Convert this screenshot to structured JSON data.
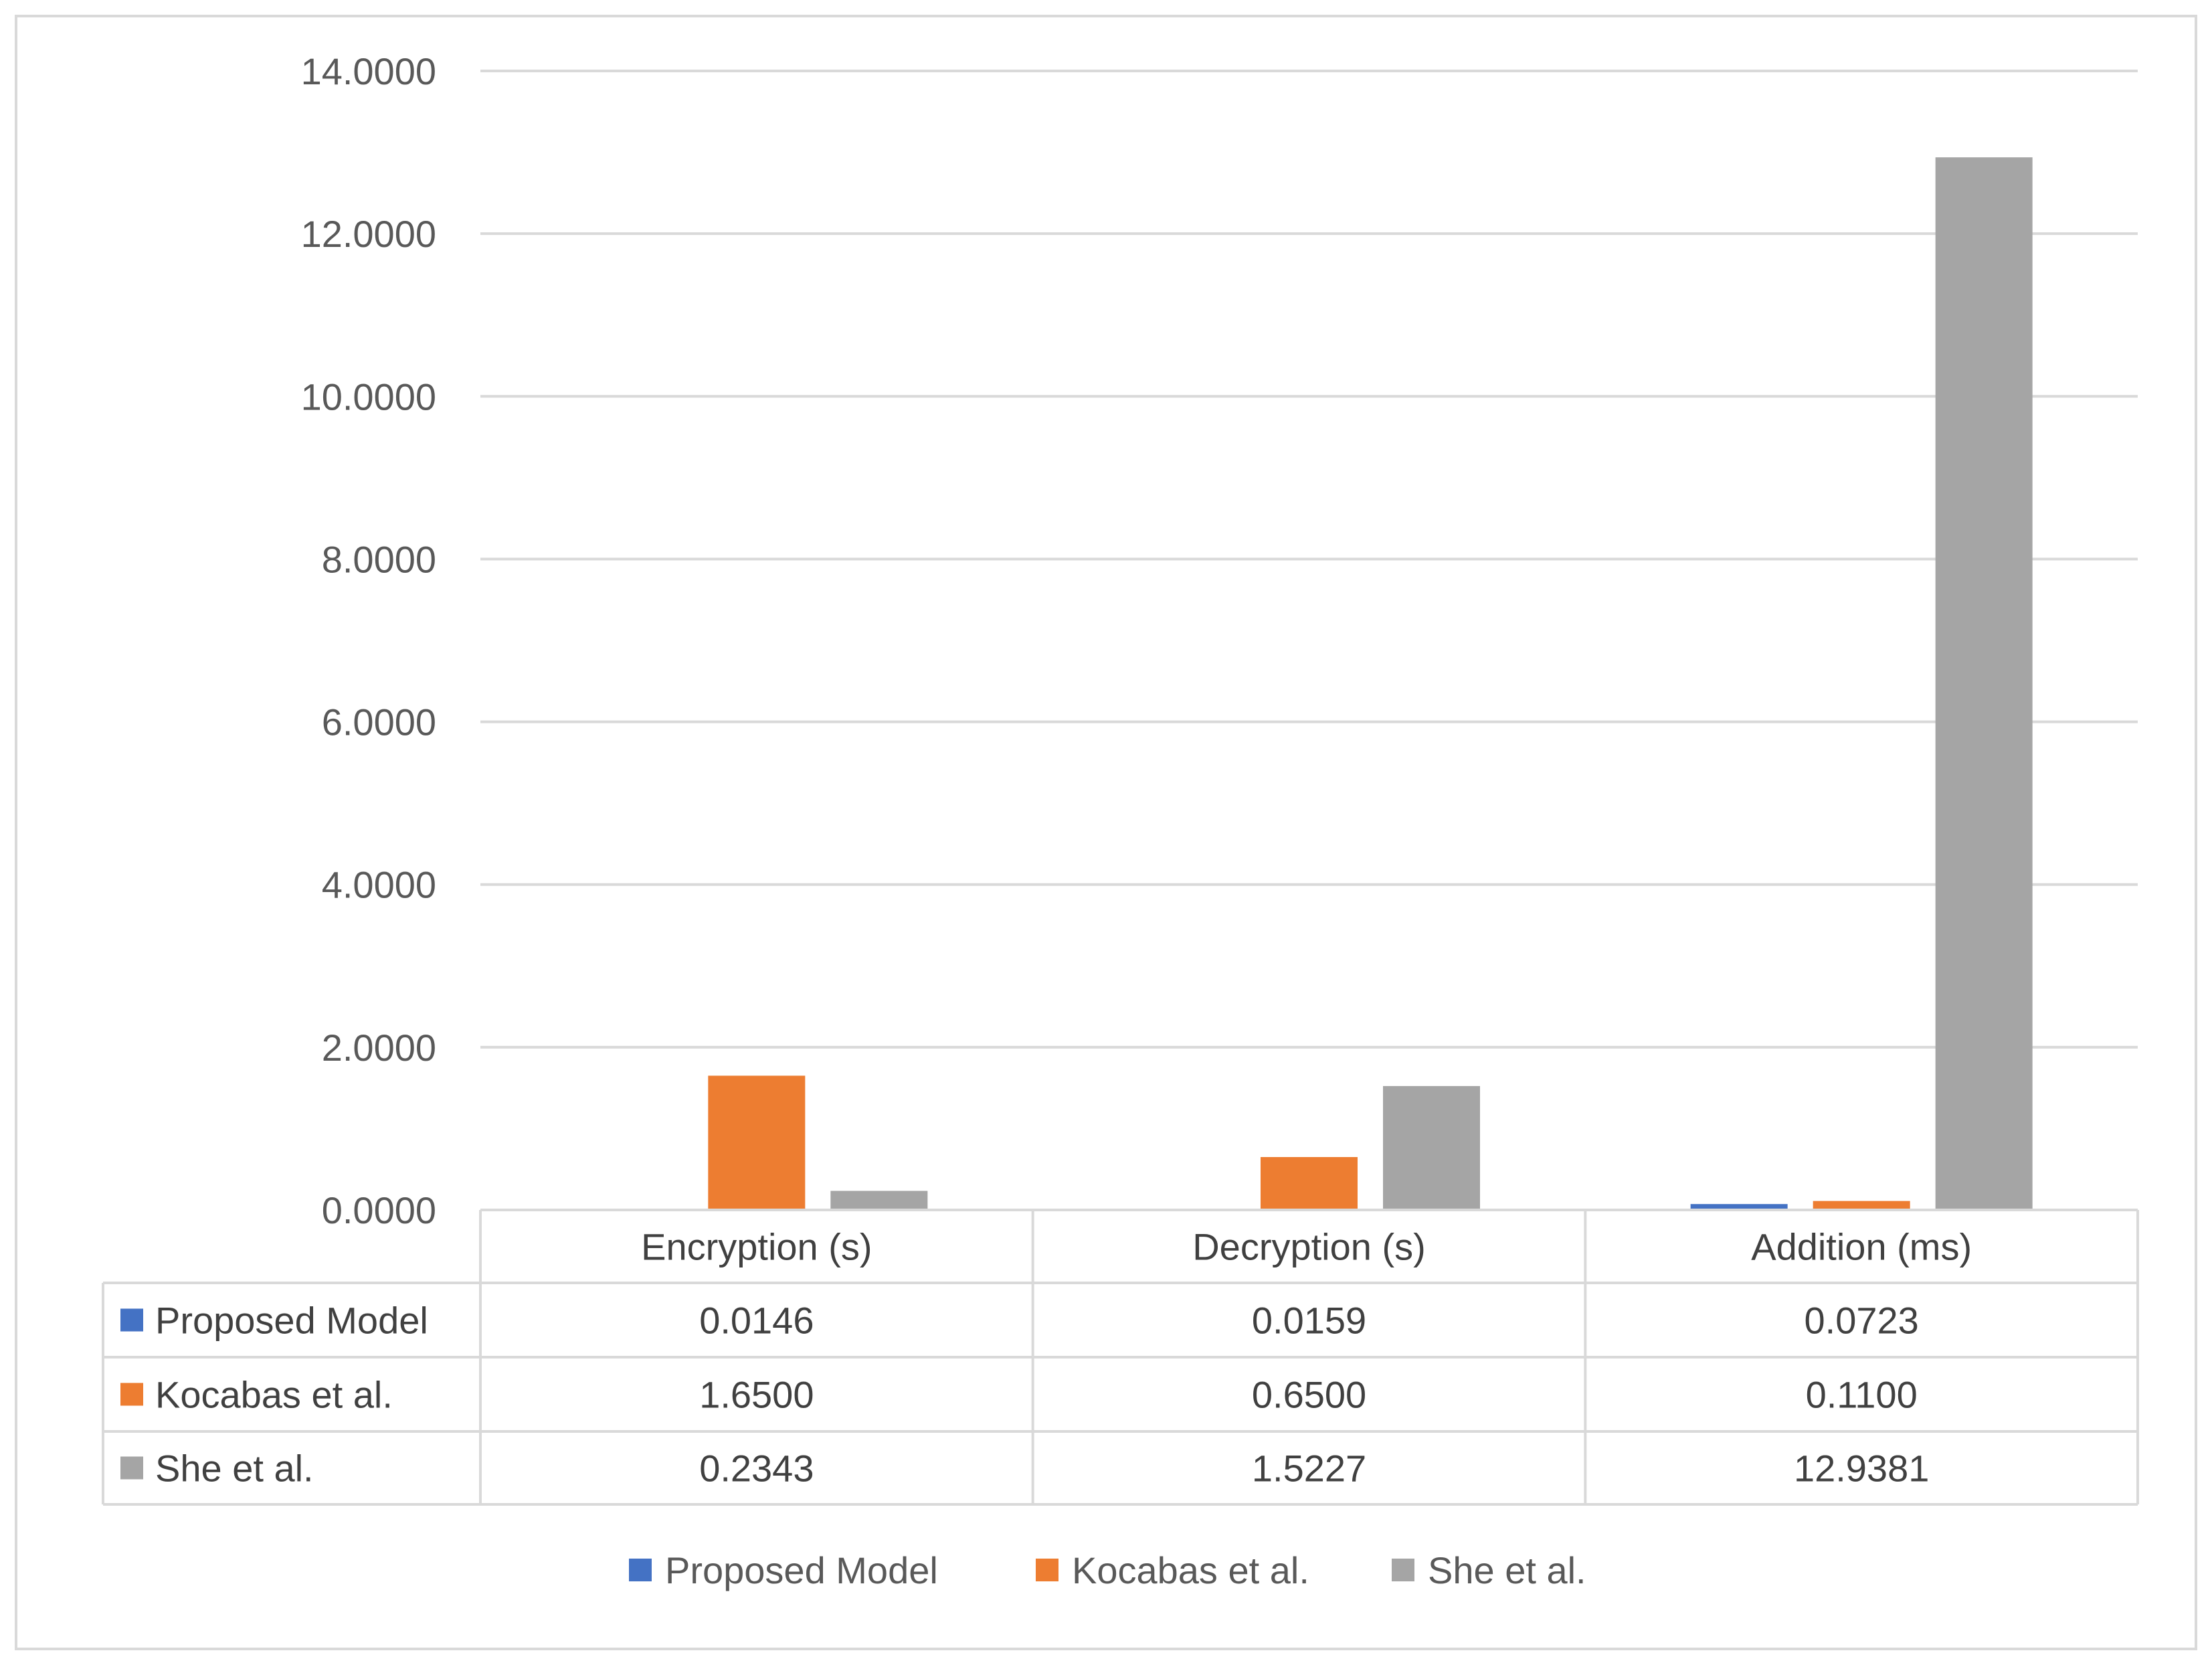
{
  "chart_data": {
    "type": "bar",
    "categories": [
      "Encryption (s)",
      "Decryption (s)",
      "Addition (ms)"
    ],
    "series": [
      {
        "name": "Proposed Model",
        "color": "#4472C4",
        "values": [
          0.0146,
          0.0159,
          0.0723
        ],
        "labels": [
          "0.0146",
          "0.0159",
          "0.0723"
        ]
      },
      {
        "name": "Kocabas et al.",
        "color": "#ED7D31",
        "values": [
          1.65,
          0.65,
          0.11
        ],
        "labels": [
          "1.6500",
          "0.6500",
          "0.1100"
        ]
      },
      {
        "name": "She et al.",
        "color": "#A5A5A5",
        "values": [
          0.2343,
          1.5227,
          12.9381
        ],
        "labels": [
          "0.2343",
          "1.5227",
          "12.9381"
        ]
      }
    ],
    "ylim": [
      0,
      14
    ],
    "yticks": [
      "0.0000",
      "2.0000",
      "4.0000",
      "6.0000",
      "8.0000",
      "10.0000",
      "12.0000",
      "14.0000"
    ],
    "grid": true,
    "data_table": true,
    "legend_position": "bottom"
  }
}
